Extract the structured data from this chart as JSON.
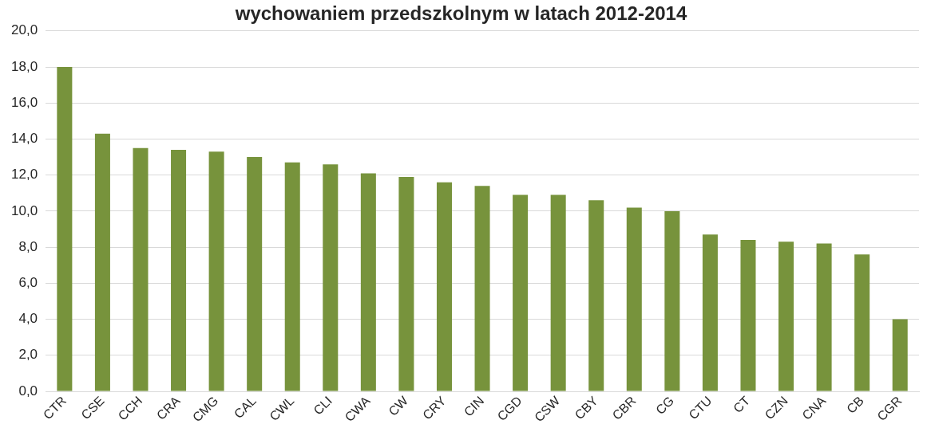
{
  "chart_data": {
    "type": "bar",
    "title": "wychowaniem przedszkolnym w latach 2012-2014",
    "categories": [
      "CTR",
      "CSE",
      "CCH",
      "CRA",
      "CMG",
      "CAL",
      "CWL",
      "CLI",
      "CWA",
      "CW",
      "CRY",
      "CIN",
      "CGD",
      "CSW",
      "CBY",
      "CBR",
      "CG",
      "CTU",
      "CT",
      "CZN",
      "CNA",
      "CB",
      "CGR"
    ],
    "values": [
      18.0,
      14.3,
      13.5,
      13.4,
      13.3,
      13.0,
      12.7,
      12.6,
      12.1,
      11.9,
      11.6,
      11.4,
      10.9,
      10.9,
      10.6,
      10.2,
      10.0,
      8.7,
      8.4,
      8.3,
      8.2,
      7.6,
      4.0
    ],
    "color": "#77933c",
    "ylim": [
      0,
      20
    ],
    "yticks": [
      {
        "value": 0,
        "label": "0,0"
      },
      {
        "value": 2,
        "label": "2,0"
      },
      {
        "value": 4,
        "label": "4,0"
      },
      {
        "value": 6,
        "label": "6,0"
      },
      {
        "value": 8,
        "label": "8,0"
      },
      {
        "value": 10,
        "label": "10,0"
      },
      {
        "value": 12,
        "label": "12,0"
      },
      {
        "value": 14,
        "label": "14,0"
      },
      {
        "value": 16,
        "label": "16,0"
      },
      {
        "value": 18,
        "label": "18,0"
      },
      {
        "value": 20,
        "label": "20,0"
      }
    ],
    "grid": "y"
  }
}
